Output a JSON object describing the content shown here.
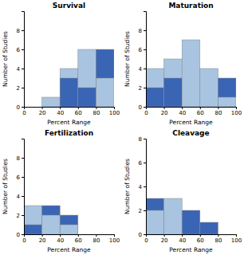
{
  "chart_data": [
    {
      "type": "histogram",
      "title": "Survival",
      "xlabel": "Percent Range",
      "ylabel": "Number of Studies",
      "bins": [
        0,
        20,
        40,
        60,
        80,
        100
      ],
      "series": [
        {
          "color": "#a8c4e0",
          "values": [
            0,
            1,
            4,
            6,
            3
          ]
        },
        {
          "color": "#3a65b5",
          "values": [
            0,
            0,
            3,
            2,
            6
          ]
        }
      ],
      "xlim": [
        0,
        100
      ],
      "xticks": [
        0,
        20,
        40,
        60,
        80,
        100
      ],
      "ylim": [
        0,
        10
      ],
      "yticks": [
        0,
        2,
        4,
        6,
        8
      ]
    },
    {
      "type": "histogram",
      "title": "Maturation",
      "xlabel": "Percent Range",
      "ylabel": "Number of Studies",
      "bins": [
        0,
        20,
        40,
        60,
        80,
        100
      ],
      "series": [
        {
          "color": "#a8c4e0",
          "values": [
            4,
            5,
            7,
            4,
            1
          ]
        },
        {
          "color": "#3a65b5",
          "values": [
            2,
            3,
            0,
            0,
            3
          ]
        }
      ],
      "xlim": [
        0,
        100
      ],
      "xticks": [
        0,
        20,
        40,
        60,
        80,
        100
      ],
      "ylim": [
        0,
        10
      ],
      "yticks": [
        0,
        2,
        4,
        6,
        8
      ]
    },
    {
      "type": "histogram",
      "title": "Fertilization",
      "xlabel": "Percent Range",
      "ylabel": "Number of Studies",
      "bins": [
        0,
        20,
        40,
        60,
        80,
        100
      ],
      "series": [
        {
          "color": "#a8c4e0",
          "values": [
            3,
            2,
            1,
            0,
            0
          ]
        },
        {
          "color": "#3a65b5",
          "values": [
            1,
            3,
            2,
            0,
            0
          ]
        }
      ],
      "xlim": [
        0,
        100
      ],
      "xticks": [
        0,
        20,
        40,
        60,
        80,
        100
      ],
      "ylim": [
        0,
        10
      ],
      "yticks": [
        0,
        2,
        4,
        6,
        8
      ]
    },
    {
      "type": "histogram",
      "title": "Cleavage",
      "xlabel": "Percent Range",
      "ylabel": "Number of Studies",
      "bins": [
        0,
        20,
        40,
        60,
        80,
        100
      ],
      "series": [
        {
          "color": "#a8c4e0",
          "values": [
            2,
            3,
            0,
            0,
            0
          ]
        },
        {
          "color": "#3a65b5",
          "values": [
            3,
            0,
            2,
            1,
            0
          ]
        }
      ],
      "xlim": [
        0,
        100
      ],
      "xticks": [
        0,
        20,
        40,
        60,
        80,
        100
      ],
      "ylim": [
        0,
        8
      ],
      "yticks": [
        0,
        2,
        4,
        6,
        8
      ]
    }
  ]
}
